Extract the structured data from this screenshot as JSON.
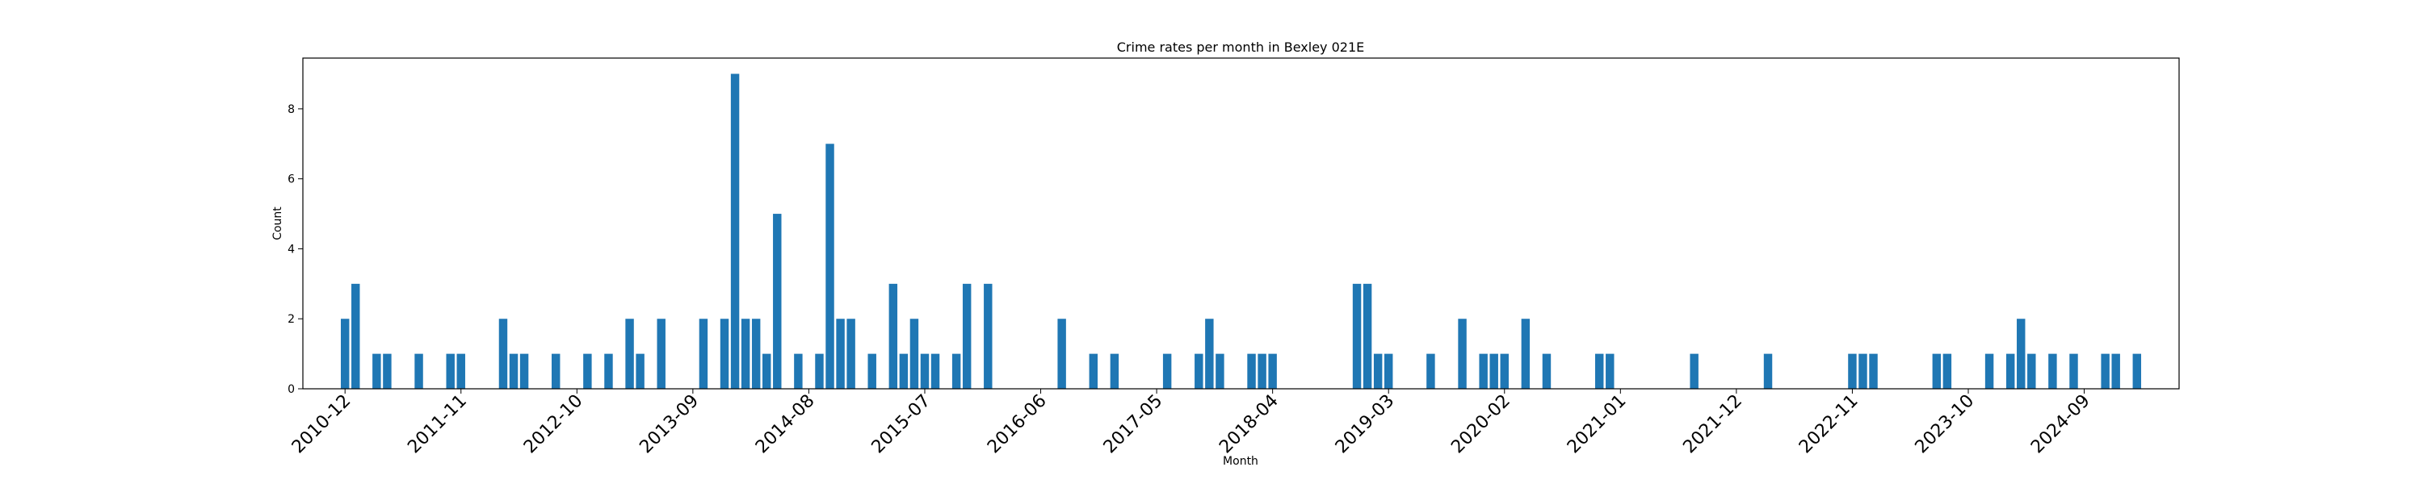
{
  "chart_data": {
    "type": "bar",
    "title": "Crime rates per month in Bexley 021E",
    "xlabel": "Month",
    "ylabel": "Count",
    "ylim": [
      0,
      9.45
    ],
    "yticks": [
      0,
      2,
      4,
      6,
      8
    ],
    "xtick_labels": [
      "2010-12",
      "2011-11",
      "2012-10",
      "2013-09",
      "2014-08",
      "2015-07",
      "2016-06",
      "2017-05",
      "2018-04",
      "2019-03",
      "2020-02",
      "2021-01",
      "2021-12",
      "2022-11",
      "2023-10",
      "2024-09"
    ],
    "bar_color": "#1f77b4",
    "grid": false,
    "categories": [
      "2010-12",
      "2011-01",
      "2011-03",
      "2011-04",
      "2011-07",
      "2011-10",
      "2011-11",
      "2012-03",
      "2012-04",
      "2012-05",
      "2012-08",
      "2012-11",
      "2013-01",
      "2013-03",
      "2013-04",
      "2013-06",
      "2013-10",
      "2013-12",
      "2014-01",
      "2014-02",
      "2014-03",
      "2014-04",
      "2014-05",
      "2014-07",
      "2014-09",
      "2014-10",
      "2014-11",
      "2014-12",
      "2015-02",
      "2015-04",
      "2015-05",
      "2015-06",
      "2015-07",
      "2015-08",
      "2015-10",
      "2015-11",
      "2016-01",
      "2016-08",
      "2016-11",
      "2017-01",
      "2017-06",
      "2017-09",
      "2017-10",
      "2017-11",
      "2018-02",
      "2018-03",
      "2018-04",
      "2018-12",
      "2019-01",
      "2019-02",
      "2019-03",
      "2019-07",
      "2019-10",
      "2019-12",
      "2020-01",
      "2020-02",
      "2020-04",
      "2020-06",
      "2020-11",
      "2020-12",
      "2021-08",
      "2022-03",
      "2022-11",
      "2022-12",
      "2023-01",
      "2023-07",
      "2023-08",
      "2023-12",
      "2024-02",
      "2024-03",
      "2024-04",
      "2024-06",
      "2024-08",
      "2024-11",
      "2024-12",
      "2025-02"
    ],
    "values": [
      2,
      3,
      1,
      1,
      1,
      1,
      1,
      2,
      1,
      1,
      1,
      1,
      1,
      2,
      1,
      2,
      2,
      2,
      9,
      2,
      2,
      1,
      5,
      1,
      1,
      7,
      2,
      2,
      1,
      3,
      1,
      2,
      1,
      1,
      1,
      3,
      3,
      2,
      1,
      1,
      1,
      1,
      2,
      1,
      1,
      1,
      1,
      3,
      3,
      1,
      1,
      1,
      2,
      1,
      1,
      1,
      2,
      1,
      1,
      1,
      1,
      1,
      1,
      1,
      1,
      1,
      1,
      1,
      1,
      2,
      1,
      1,
      1,
      1,
      1,
      1
    ]
  }
}
